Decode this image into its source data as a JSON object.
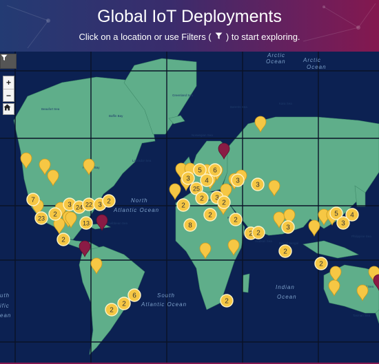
{
  "header": {
    "title": "Global IoT Deployments",
    "subtitle_before": "Click on a location or use Filters (",
    "subtitle_icon": "filter-icon",
    "subtitle_after": ") to start exploring."
  },
  "controls": {
    "filter_icon": "filter-icon",
    "zoom_in": "+",
    "zoom_out": "−",
    "home_icon": "home-icon"
  },
  "colors": {
    "cluster_marker": "#f6c744",
    "single_marker": "#f6c744",
    "selected_marker": "#8a1b45",
    "land": "#5fae8a",
    "ocean": "#0c2152"
  },
  "ocean_labels": [
    "North",
    "Atlantic Ocean",
    "South",
    "Atlantic Ocean",
    "Indian",
    "Ocean",
    "Arctic",
    "Ocean",
    "Arctic",
    "Ocean",
    "uth",
    "ific",
    "ean"
  ],
  "sea_labels": [
    "Greenland Sea",
    "Barents Sea",
    "Kara Sea",
    "Hudson Bay",
    "Labrador Sea",
    "Norwegian Sea",
    "Caribbean Sea",
    "Arabian Sea",
    "Bay of Bengal",
    "Philippine Sea",
    "Coral Sea",
    "Tasman Sea",
    "Red Sea",
    "Black Sea",
    "Mediterranean Sea",
    "Beaufort Sea",
    "Baffin Bay"
  ],
  "clusters": [
    {
      "count": "7"
    },
    {
      "count": "23"
    },
    {
      "count": "2"
    },
    {
      "count": "3"
    },
    {
      "count": "24"
    },
    {
      "count": "22"
    },
    {
      "count": "3"
    },
    {
      "count": "2"
    },
    {
      "count": "13"
    },
    {
      "count": "2"
    },
    {
      "count": "5"
    },
    {
      "count": "6"
    },
    {
      "count": "4"
    },
    {
      "count": "25"
    },
    {
      "count": "3"
    },
    {
      "count": "2"
    },
    {
      "count": "2"
    },
    {
      "count": "3"
    },
    {
      "count": "2"
    },
    {
      "count": "8"
    },
    {
      "count": "2"
    },
    {
      "count": "2"
    },
    {
      "count": "2"
    },
    {
      "count": "2"
    },
    {
      "count": "3"
    },
    {
      "count": "3"
    },
    {
      "count": "5"
    },
    {
      "count": "4"
    },
    {
      "count": "3"
    },
    {
      "count": "2"
    },
    {
      "count": "6"
    },
    {
      "count": "2"
    },
    {
      "count": "2"
    },
    {
      "count": "2"
    },
    {
      "count": "2"
    },
    {
      "count": "3"
    }
  ],
  "single_marker_count": 34,
  "selected_marker_count": 4
}
